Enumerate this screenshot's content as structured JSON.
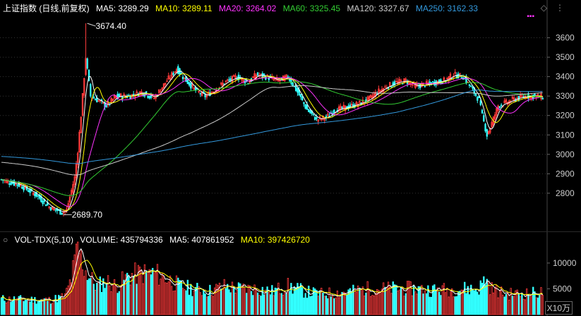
{
  "header": {
    "title": "上证指数 (日线,前复权)",
    "ma": [
      {
        "label": "MA5: 3289.29",
        "color": "#ffffff"
      },
      {
        "label": "MA10: 3289.11",
        "color": "#ffff00"
      },
      {
        "label": "MA20: 3264.02",
        "color": "#ff33ff"
      },
      {
        "label": "MA60: 3325.45",
        "color": "#33cc33"
      },
      {
        "label": "MA120: 3327.67",
        "color": "#cccccc"
      },
      {
        "label": "MA250: 3162.33",
        "color": "#3399dd"
      }
    ]
  },
  "volume_header": {
    "title": "VOL-TDX(5,10)",
    "items": [
      {
        "label": "VOLUME: 435794336",
        "color": "#ffffff"
      },
      {
        "label": "MA5: 407861952",
        "color": "#ffffff"
      },
      {
        "label": "MA10: 397426720",
        "color": "#ffff00"
      }
    ],
    "unit": "X10万"
  },
  "colors": {
    "up": "#ff3b3b",
    "down": "#33ffff",
    "bg": "#000000",
    "grid": "#333333"
  },
  "chart_data": [
    {
      "type": "candlestick",
      "title": "上证指数 (日线,前复权)",
      "ylim": [
        2640,
        3700
      ],
      "yticks": [
        2800,
        2900,
        3000,
        3100,
        3200,
        3300,
        3400,
        3500,
        3600
      ],
      "annotations": [
        {
          "text": "3674.40",
          "value": 3674.4
        },
        {
          "text": "2689.70",
          "value": 2689.7
        }
      ],
      "series_shape": {
        "close": [
          [
            0,
            2870
          ],
          [
            12,
            2840
          ],
          [
            22,
            2790
          ],
          [
            30,
            2730
          ],
          [
            38,
            2700
          ],
          [
            41,
            2715
          ],
          [
            46,
            2880
          ],
          [
            48,
            3020
          ],
          [
            50,
            3200
          ],
          [
            53,
            3500
          ],
          [
            56,
            3300
          ],
          [
            60,
            3280
          ],
          [
            66,
            3250
          ],
          [
            72,
            3300
          ],
          [
            80,
            3300
          ],
          [
            88,
            3320
          ],
          [
            96,
            3290
          ],
          [
            104,
            3380
          ],
          [
            110,
            3440
          ],
          [
            116,
            3380
          ],
          [
            122,
            3330
          ],
          [
            128,
            3300
          ],
          [
            134,
            3330
          ],
          [
            140,
            3370
          ],
          [
            148,
            3400
          ],
          [
            155,
            3370
          ],
          [
            160,
            3410
          ],
          [
            166,
            3400
          ],
          [
            174,
            3380
          ],
          [
            180,
            3400
          ],
          [
            186,
            3320
          ],
          [
            192,
            3230
          ],
          [
            198,
            3180
          ],
          [
            204,
            3190
          ],
          [
            210,
            3230
          ],
          [
            216,
            3240
          ],
          [
            224,
            3260
          ],
          [
            230,
            3280
          ],
          [
            236,
            3320
          ],
          [
            242,
            3350
          ],
          [
            248,
            3370
          ],
          [
            254,
            3380
          ],
          [
            260,
            3350
          ],
          [
            266,
            3360
          ],
          [
            272,
            3370
          ],
          [
            278,
            3380
          ],
          [
            284,
            3410
          ],
          [
            290,
            3400
          ],
          [
            296,
            3330
          ],
          [
            300,
            3280
          ],
          [
            302,
            3200
          ],
          [
            305,
            3100
          ],
          [
            308,
            3160
          ],
          [
            312,
            3250
          ],
          [
            318,
            3270
          ],
          [
            324,
            3290
          ],
          [
            330,
            3300
          ],
          [
            336,
            3300
          ],
          [
            340,
            3295
          ]
        ],
        "n": 341
      }
    },
    {
      "type": "bar",
      "title": "VOL-TDX(5,10)",
      "ylabel": "X10万",
      "ylim": [
        0,
        13000
      ],
      "yticks": [
        5000,
        10000
      ],
      "series_shape": {
        "volume": [
          [
            0,
            3000
          ],
          [
            30,
            2800
          ],
          [
            40,
            3500
          ],
          [
            44,
            7000
          ],
          [
            48,
            13000
          ],
          [
            52,
            9000
          ],
          [
            56,
            7000
          ],
          [
            60,
            5500
          ],
          [
            66,
            6500
          ],
          [
            72,
            5500
          ],
          [
            80,
            7500
          ],
          [
            88,
            8000
          ],
          [
            96,
            8000
          ],
          [
            104,
            7000
          ],
          [
            112,
            5500
          ],
          [
            120,
            5000
          ],
          [
            130,
            4500
          ],
          [
            140,
            5500
          ],
          [
            150,
            5000
          ],
          [
            160,
            5000
          ],
          [
            170,
            4500
          ],
          [
            180,
            5500
          ],
          [
            190,
            4500
          ],
          [
            200,
            4000
          ],
          [
            210,
            4200
          ],
          [
            220,
            4500
          ],
          [
            230,
            5000
          ],
          [
            240,
            5000
          ],
          [
            250,
            5000
          ],
          [
            260,
            5000
          ],
          [
            270,
            4800
          ],
          [
            280,
            4800
          ],
          [
            290,
            5000
          ],
          [
            300,
            5000
          ],
          [
            304,
            7000
          ],
          [
            308,
            5000
          ],
          [
            316,
            4000
          ],
          [
            326,
            4000
          ],
          [
            340,
            4300
          ]
        ],
        "n": 341
      }
    }
  ]
}
